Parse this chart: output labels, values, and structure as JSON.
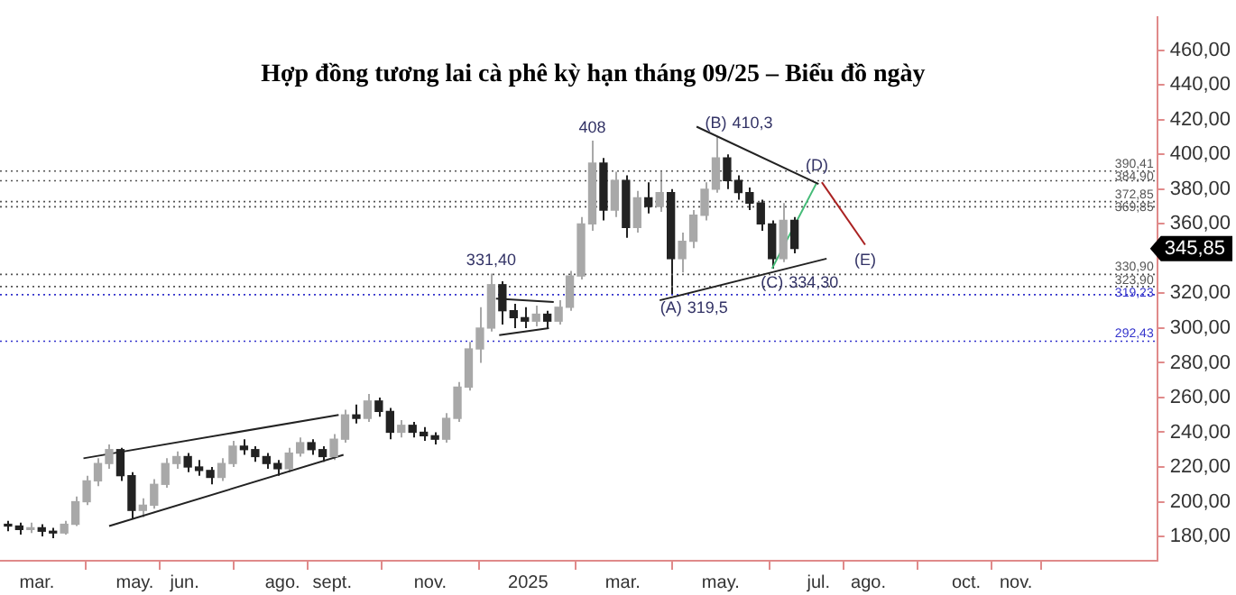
{
  "chart_data": {
    "type": "candlestick",
    "title": "Hợp đồng tương lai cà phê kỳ hạn tháng 09/25 – Biểu đồ ngày",
    "colors": [
      "#222222",
      "#222222",
      "#a8a8a8",
      "#222222",
      "#222222",
      "#a8a8a8",
      "#a8a8a8",
      "#a8a8a8",
      "#a8a8a8",
      "#a8a8a8",
      "#222222",
      "#222222",
      "#a8a8a8",
      "#a8a8a8",
      "#a8a8a8",
      "#a8a8a8",
      "#222222",
      "#222222",
      "#222222",
      "#a8a8a8",
      "#a8a8a8",
      "#222222",
      "#222222",
      "#222222",
      "#222222",
      "#a8a8a8",
      "#a8a8a8",
      "#222222",
      "#222222",
      "#a8a8a8",
      "#a8a8a8",
      "#222222",
      "#a8a8a8",
      "#222222",
      "#222222",
      "#a8a8a8",
      "#222222",
      "#222222",
      "#222222",
      "#a8a8a8",
      "#a8a8a8",
      "#a8a8a8",
      "#a8a8a8",
      "#a8a8a8",
      "#222222",
      "#222222",
      "#222222",
      "#a8a8a8",
      "#222222",
      "#a8a8a8",
      "#a8a8a8",
      "#a8a8a8",
      "#a8a8a8",
      "#222222",
      "#a8a8a8",
      "#222222",
      "#a8a8a8",
      "#222222",
      "#a8a8a8",
      "#222222",
      "#a8a8a8",
      "#a8a8a8",
      "#a8a8a8",
      "#a8a8a8",
      "#222222",
      "#222222",
      "#222222",
      "#222222",
      "#222222",
      "#a8a8a8",
      "#222222"
    ],
    "x": [
      "2024-02-12",
      "2024-02-19",
      "2024-02-26",
      "2024-03-04",
      "2024-03-11",
      "2024-03-18",
      "2024-03-25",
      "2024-04-01",
      "2024-04-08",
      "2024-04-15",
      "2024-04-22",
      "2024-04-29",
      "2024-05-06",
      "2024-05-13",
      "2024-05-20",
      "2024-05-27",
      "2024-06-03",
      "2024-06-10",
      "2024-06-17",
      "2024-06-24",
      "2024-07-01",
      "2024-07-08",
      "2024-07-15",
      "2024-07-22",
      "2024-07-29",
      "2024-08-05",
      "2024-08-12",
      "2024-08-19",
      "2024-08-26",
      "2024-09-02",
      "2024-09-09",
      "2024-09-16",
      "2024-09-23",
      "2024-09-30",
      "2024-10-07",
      "2024-10-14",
      "2024-10-21",
      "2024-10-28",
      "2024-11-04",
      "2024-11-11",
      "2024-11-18",
      "2024-11-25",
      "2024-12-02",
      "2024-12-09",
      "2024-12-16",
      "2024-12-23",
      "2024-12-30",
      "2025-01-06",
      "2025-01-13",
      "2025-01-20",
      "2025-01-27",
      "2025-02-03",
      "2025-02-10",
      "2025-02-17",
      "2025-02-24",
      "2025-03-03",
      "2025-03-10",
      "2025-03-17",
      "2025-03-24",
      "2025-03-31",
      "2025-04-07",
      "2025-04-14",
      "2025-04-21",
      "2025-04-28",
      "2025-05-05",
      "2025-05-12",
      "2025-05-19",
      "2025-05-26",
      "2025-06-02",
      "2025-06-09",
      "2025-06-16"
    ],
    "ohlc": [
      [
        187,
        189,
        183,
        186
      ],
      [
        186,
        188,
        181,
        184
      ],
      [
        184,
        188,
        182,
        185
      ],
      [
        185,
        187,
        180,
        183
      ],
      [
        183,
        185,
        179,
        182
      ],
      [
        182,
        189,
        181,
        187
      ],
      [
        187,
        203,
        186,
        200
      ],
      [
        200,
        215,
        198,
        212
      ],
      [
        212,
        225,
        209,
        222
      ],
      [
        222,
        233,
        219,
        230
      ],
      [
        230,
        231,
        212,
        215
      ],
      [
        215,
        217,
        190,
        195
      ],
      [
        195,
        202,
        191,
        198
      ],
      [
        198,
        213,
        196,
        210
      ],
      [
        210,
        225,
        208,
        222
      ],
      [
        222,
        229,
        219,
        226
      ],
      [
        226,
        228,
        217,
        220
      ],
      [
        220,
        224,
        215,
        218
      ],
      [
        218,
        220,
        210,
        214
      ],
      [
        214,
        225,
        212,
        222
      ],
      [
        222,
        235,
        220,
        232
      ],
      [
        232,
        236,
        227,
        230
      ],
      [
        230,
        232,
        223,
        226
      ],
      [
        226,
        228,
        219,
        222
      ],
      [
        222,
        224,
        215,
        219
      ],
      [
        219,
        231,
        217,
        228
      ],
      [
        228,
        237,
        226,
        234
      ],
      [
        234,
        236,
        227,
        230
      ],
      [
        230,
        232,
        223,
        226
      ],
      [
        226,
        239,
        224,
        236
      ],
      [
        236,
        253,
        234,
        250
      ],
      [
        250,
        256,
        245,
        248
      ],
      [
        248,
        262,
        246,
        258
      ],
      [
        258,
        260,
        249,
        252
      ],
      [
        252,
        254,
        236,
        240
      ],
      [
        240,
        247,
        237,
        244
      ],
      [
        244,
        246,
        237,
        240
      ],
      [
        240,
        243,
        235,
        238
      ],
      [
        238,
        240,
        233,
        236
      ],
      [
        236,
        251,
        234,
        248
      ],
      [
        248,
        269,
        246,
        266
      ],
      [
        266,
        292,
        264,
        288
      ],
      [
        288,
        312,
        280,
        300
      ],
      [
        300,
        331.4,
        298,
        325
      ],
      [
        325,
        327,
        302,
        310
      ],
      [
        310,
        314,
        300,
        306
      ],
      [
        306,
        312,
        300,
        304
      ],
      [
        304,
        313,
        301,
        308
      ],
      [
        308,
        310,
        300,
        304
      ],
      [
        304,
        316,
        302,
        312
      ],
      [
        312,
        333,
        310,
        330
      ],
      [
        330,
        364,
        328,
        360
      ],
      [
        360,
        408,
        356,
        395
      ],
      [
        395,
        398,
        362,
        368
      ],
      [
        368,
        390,
        364,
        385
      ],
      [
        385,
        388,
        352,
        358
      ],
      [
        358,
        379,
        355,
        375
      ],
      [
        375,
        384,
        366,
        370
      ],
      [
        370,
        390,
        367,
        378
      ],
      [
        378,
        380,
        319.5,
        340
      ],
      [
        340,
        355,
        332,
        350
      ],
      [
        350,
        368,
        346,
        365
      ],
      [
        365,
        384,
        362,
        380
      ],
      [
        380,
        410.3,
        378,
        398
      ],
      [
        398,
        400,
        380,
        385
      ],
      [
        385,
        388,
        374,
        378
      ],
      [
        378,
        381,
        368,
        372
      ],
      [
        372,
        374,
        356,
        360
      ],
      [
        360,
        362,
        334.3,
        340
      ],
      [
        340,
        372,
        338,
        362
      ],
      [
        362,
        364,
        343,
        345.85
      ]
    ],
    "series": [
      {
        "type": "line",
        "color": "#222222",
        "x": [
          "2024-04-15",
          "2024-09-08"
        ],
        "values": [
          186,
          227
        ]
      },
      {
        "type": "line",
        "color": "#222222",
        "x": [
          "2024-03-30",
          "2024-09-05"
        ],
        "values": [
          225,
          250
        ]
      },
      {
        "type": "line",
        "color": "#222222",
        "x": [
          "2024-12-12",
          "2025-01-17"
        ],
        "values": [
          317,
          315
        ]
      },
      {
        "type": "line",
        "color": "#222222",
        "x": [
          "2024-12-14",
          "2025-01-14"
        ],
        "values": [
          296,
          300
        ]
      },
      {
        "type": "line",
        "color": "#222222",
        "x": [
          "2025-04-16",
          "2025-07-01"
        ],
        "values": [
          416,
          383
        ]
      },
      {
        "type": "line",
        "color": "#222222",
        "x": [
          "2025-03-24",
          "2025-07-06"
        ],
        "values": [
          316,
          340
        ]
      },
      {
        "type": "line",
        "color": "#44bb77",
        "x": [
          "2025-06-02",
          "2025-06-30"
        ],
        "values": [
          334.3,
          384
        ]
      },
      {
        "type": "line",
        "color": "#aa2222",
        "x": [
          "2025-07-03",
          "2025-07-30"
        ],
        "values": [
          384,
          348
        ]
      }
    ],
    "ref_lines": [
      {
        "axis": "y",
        "value": 390.41,
        "label": "390,41",
        "color": "#555555",
        "line_style": "dotted"
      },
      {
        "axis": "y",
        "value": 384.9,
        "label": "384,90",
        "color": "#555555",
        "line_style": "dotted"
      },
      {
        "axis": "y",
        "value": 372.85,
        "label": "372,85",
        "color": "#555555",
        "line_style": "dotted"
      },
      {
        "axis": "y",
        "value": 369.85,
        "label": "369,85",
        "color": "#555555",
        "line_style": "dotted"
      },
      {
        "axis": "y",
        "value": 330.9,
        "label": "330,90",
        "color": "#555555",
        "line_style": "dotted"
      },
      {
        "axis": "y",
        "value": 323.9,
        "label": "323,90",
        "color": "#555555",
        "line_style": "dotted"
      },
      {
        "axis": "y",
        "value": 319.23,
        "label": "319,23",
        "color": "#3333cc",
        "line_style": "dotted"
      },
      {
        "axis": "y",
        "value": 292.43,
        "label": "292,43",
        "color": "#3333cc",
        "line_style": "dotted"
      }
    ],
    "annotations": [
      {
        "text": "(A)",
        "x": "2025-03-31",
        "y": 319.5
      },
      {
        "text": "(B)",
        "x": "2025-04-28",
        "y": 410.3
      },
      {
        "text": "(C)",
        "x": "2025-06-02",
        "y": 334.3
      },
      {
        "text": "(D)",
        "x": "2025-06-30",
        "y": 384
      },
      {
        "text": "(E)",
        "x": "2025-07-30",
        "y": 348
      },
      {
        "text": "408",
        "x": "2025-02-10",
        "y": 408
      },
      {
        "text": "410,3",
        "x": "2025-04-28",
        "y": 410.3
      },
      {
        "text": "319,5",
        "x": "2025-03-31",
        "y": 319.5
      },
      {
        "text": "331,40",
        "x": "2024-12-09",
        "y": 331.4
      },
      {
        "text": "334,30",
        "x": "2025-06-02",
        "y": 334.3
      },
      "345,85"
    ],
    "xlim": [
      "2024-02-07",
      "2026-01-28"
    ],
    "xticks": [
      {
        "value": "2024-03-01",
        "label": "mar."
      },
      {
        "value": "2024-05-01",
        "label": "may."
      },
      {
        "value": "2024-06-01",
        "label": "jun."
      },
      {
        "value": "2024-08-01",
        "label": "ago."
      },
      {
        "value": "2024-09-01",
        "label": "sept."
      },
      {
        "value": "2024-11-01",
        "label": "nov."
      },
      {
        "value": "2025-01-01",
        "label": "2025"
      },
      {
        "value": "2025-03-01",
        "label": "mar."
      },
      {
        "value": "2025-05-01",
        "label": "may."
      },
      {
        "value": "2025-07-01",
        "label": "jul."
      },
      {
        "value": "2025-08-01",
        "label": "ago."
      },
      {
        "value": "2025-10-01",
        "label": "oct."
      },
      {
        "value": "2025-11-01",
        "label": "nov."
      }
    ],
    "ylim": [
      166,
      479
    ],
    "yticks": [
      {
        "value": 180,
        "label": "180,00"
      },
      {
        "value": 200,
        "label": "200,00"
      },
      {
        "value": 220,
        "label": "220,00"
      },
      {
        "value": 240,
        "label": "240,00"
      },
      {
        "value": 260,
        "label": "260,00"
      },
      {
        "value": 280,
        "label": "280,00"
      },
      {
        "value": 300,
        "label": "300,00"
      },
      {
        "value": 320,
        "label": "320,00"
      },
      {
        "value": 340,
        "label": null
      },
      {
        "value": 360,
        "label": "360,00"
      },
      {
        "value": 380,
        "label": "380,00"
      },
      {
        "value": 400,
        "label": "400,00"
      },
      {
        "value": 420,
        "label": "420,00"
      },
      {
        "value": 440,
        "label": "440,00"
      },
      {
        "value": 460,
        "label": "460,00"
      }
    ],
    "grid": false,
    "legend": false
  }
}
